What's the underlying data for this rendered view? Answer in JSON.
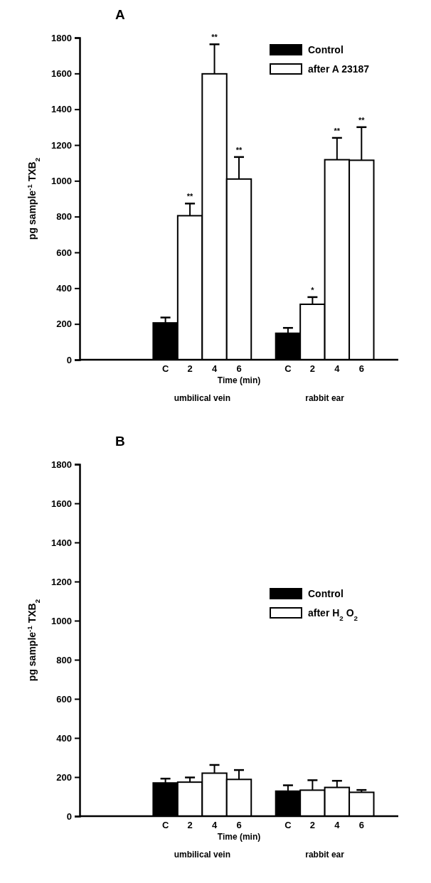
{
  "chart_data": [
    {
      "type": "bar",
      "title": "A",
      "xlabel": "Time (min)",
      "ylabel": "pg sample$^{-1}$ TXB$_{2}$",
      "categories": [
        null,
        null,
        null,
        "C",
        "2",
        "4",
        "6",
        null,
        "C",
        "2",
        "4",
        "6",
        null
      ],
      "series": [
        {
          "name": "Control",
          "color": "#000000",
          "values": [
            null,
            null,
            null,
            206,
            null,
            null,
            null,
            null,
            148,
            null,
            null,
            null,
            null
          ],
          "errors": [
            null,
            null,
            null,
            30,
            null,
            null,
            null,
            null,
            30,
            null,
            null,
            null,
            null
          ]
        },
        {
          "name": "after A 23187",
          "color": "#ffffff",
          "values": [
            null,
            null,
            null,
            null,
            805,
            1598,
            1010,
            null,
            null,
            310,
            1118,
            1115,
            null
          ],
          "errors": [
            null,
            null,
            null,
            null,
            68,
            165,
            123,
            null,
            null,
            40,
            122,
            185,
            null
          ]
        }
      ],
      "annotations": [
        "umbilical vein",
        "rabbit ear",
        "**",
        "**",
        "**",
        "*",
        "**",
        "**"
      ],
      "ylim": [
        0,
        1800
      ],
      "yticks": [
        0,
        200,
        400,
        600,
        800,
        1000,
        1200,
        1400,
        1600,
        1800
      ],
      "grid": false,
      "legend": "top right",
      "stacked": true
    },
    {
      "type": "bar",
      "title": "B",
      "xlabel": "Time (min)",
      "ylabel": "pg sample$^{-1}$ TXB$_{2}$",
      "categories": [
        null,
        null,
        null,
        "C",
        "2",
        "4",
        "6",
        null,
        "C",
        "2",
        "4",
        "6",
        null
      ],
      "series": [
        {
          "name": "Control",
          "color": "#000000",
          "values": [
            null,
            null,
            null,
            170,
            null,
            null,
            null,
            null,
            128,
            null,
            null,
            null,
            null
          ],
          "errors": [
            null,
            null,
            null,
            22,
            null,
            null,
            null,
            null,
            30,
            null,
            null,
            null,
            null
          ]
        },
        {
          "name": "after H$_{2}$O$_{2}$",
          "color": "#ffffff",
          "values": [
            null,
            null,
            null,
            null,
            174,
            220,
            188,
            null,
            null,
            133,
            147,
            122,
            null
          ],
          "errors": [
            null,
            null,
            null,
            null,
            24,
            42,
            48,
            null,
            null,
            51,
            34,
            12,
            null
          ]
        }
      ],
      "annotations": [
        "umbilical vein",
        "rabbit ear"
      ],
      "ylim": [
        0,
        1800
      ],
      "yticks": [
        0,
        200,
        400,
        600,
        800,
        1000,
        1200,
        1400,
        1600,
        1800
      ],
      "grid": false,
      "legend": "right",
      "stacked": true
    }
  ]
}
